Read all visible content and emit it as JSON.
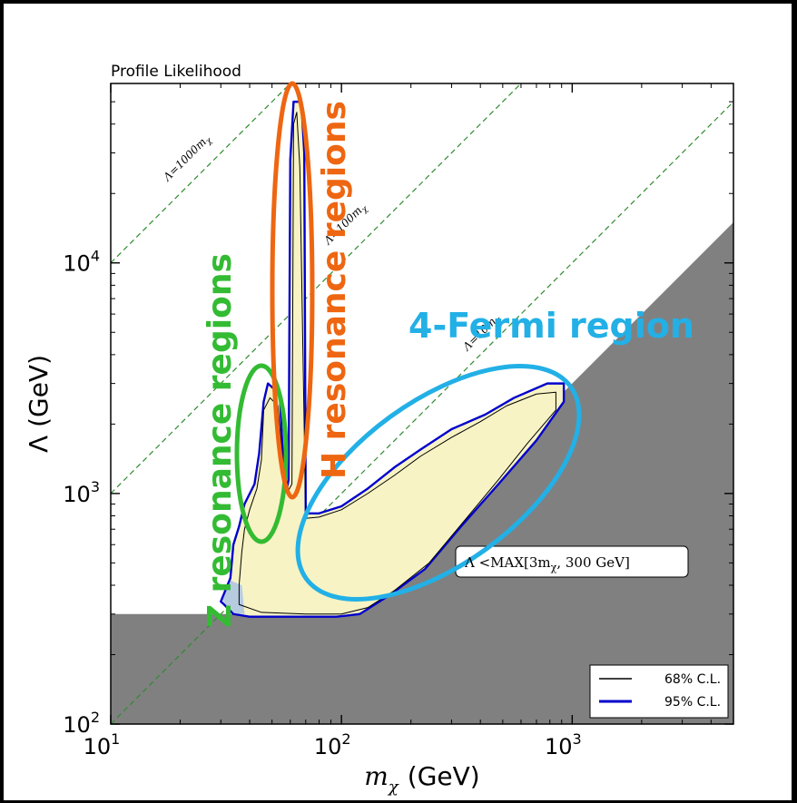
{
  "chart_data": {
    "type": "contour",
    "title": "Profile Likelihood",
    "xlabel": "m_χ (GeV)",
    "xlabel_main": "m",
    "xlabel_sub": "χ",
    "xlabel_unit": "(GeV)",
    "ylabel": "Λ (GeV)",
    "xscale": "log",
    "yscale": "log",
    "xlim": [
      10,
      5000
    ],
    "ylim": [
      100,
      60000
    ],
    "xticks": [
      {
        "value": 10,
        "base": "10",
        "exp": "1"
      },
      {
        "value": 100,
        "base": "10",
        "exp": "2"
      },
      {
        "value": 1000,
        "base": "10",
        "exp": "3"
      }
    ],
    "yticks": [
      {
        "value": 100,
        "base": "10",
        "exp": "2"
      },
      {
        "value": 1000,
        "base": "10",
        "exp": "3"
      },
      {
        "value": 10000,
        "base": "10",
        "exp": "4"
      }
    ],
    "guide_lines": [
      {
        "label": "Λ=1000m",
        "sub": "χ",
        "factor": 1000
      },
      {
        "label": "Λ=100m",
        "sub": "χ",
        "factor": 100
      },
      {
        "label": "Λ=10m",
        "sub": "χ",
        "factor": 10
      }
    ],
    "excluded_label": "Λ <MAX[3m",
    "excluded_label_sub": "χ",
    "excluded_label_end": ", 300 GeV]",
    "legend": [
      {
        "label": "68% C.L.",
        "color": "#000000"
      },
      {
        "label": "95% C.L.",
        "color": "#0000cc"
      }
    ],
    "legend_position": "lower-right",
    "annotations": [
      {
        "text": "Z resonance regions",
        "color": "#33bb33"
      },
      {
        "text": "H resonance regions",
        "color": "#ee6611"
      },
      {
        "text": "4-Fermi region",
        "color": "#22b0e6"
      }
    ],
    "contour_95": [
      [
        31,
        330
      ],
      [
        34,
        300
      ],
      [
        40,
        292
      ],
      [
        60,
        292
      ],
      [
        95,
        292
      ],
      [
        120,
        300
      ],
      [
        160,
        360
      ],
      [
        230,
        470
      ],
      [
        330,
        720
      ],
      [
        480,
        1100
      ],
      [
        700,
        1700
      ],
      [
        920,
        2500
      ],
      [
        920,
        3000
      ],
      [
        780,
        3000
      ],
      [
        560,
        2600
      ],
      [
        420,
        2200
      ],
      [
        300,
        1900
      ],
      [
        220,
        1550
      ],
      [
        170,
        1300
      ],
      [
        130,
        1050
      ],
      [
        100,
        880
      ],
      [
        80,
        820
      ],
      [
        70,
        820
      ],
      [
        69,
        30000
      ],
      [
        67,
        50000
      ],
      [
        62,
        50000
      ],
      [
        60,
        28000
      ],
      [
        59,
        1150
      ],
      [
        58,
        1050
      ],
      [
        56,
        1350
      ],
      [
        54,
        2700
      ],
      [
        48,
        3000
      ],
      [
        46,
        2500
      ],
      [
        44,
        1500
      ],
      [
        42,
        1100
      ],
      [
        38,
        900
      ],
      [
        36,
        720
      ],
      [
        34,
        600
      ],
      [
        33,
        430
      ],
      [
        30,
        340
      ]
    ],
    "contour_68": [
      [
        36,
        330
      ],
      [
        45,
        305
      ],
      [
        70,
        300
      ],
      [
        100,
        300
      ],
      [
        130,
        320
      ],
      [
        170,
        380
      ],
      [
        240,
        500
      ],
      [
        340,
        760
      ],
      [
        480,
        1150
      ],
      [
        640,
        1650
      ],
      [
        850,
        2300
      ],
      [
        850,
        2750
      ],
      [
        700,
        2700
      ],
      [
        520,
        2400
      ],
      [
        400,
        2050
      ],
      [
        300,
        1750
      ],
      [
        220,
        1450
      ],
      [
        170,
        1200
      ],
      [
        130,
        1000
      ],
      [
        100,
        850
      ],
      [
        80,
        790
      ],
      [
        70,
        780
      ],
      [
        66,
        26000
      ],
      [
        64,
        45000
      ],
      [
        62,
        40000
      ],
      [
        61,
        1100
      ],
      [
        58,
        1000
      ],
      [
        56,
        1300
      ],
      [
        53,
        2400
      ],
      [
        49,
        2600
      ],
      [
        46,
        2300
      ],
      [
        45,
        1400
      ],
      [
        43,
        1050
      ],
      [
        40,
        850
      ],
      [
        38,
        700
      ],
      [
        37,
        560
      ],
      [
        36,
        400
      ]
    ],
    "colors": {
      "region_fill": "#f7f3c4",
      "region_fill_blue": "#b7cbe0",
      "excluded": "#808080",
      "guide": "#2e8b2e",
      "ci95": "#0000cc",
      "ci68": "#000000"
    }
  }
}
